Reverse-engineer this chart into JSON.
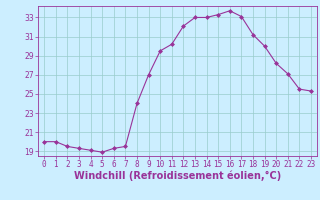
{
  "x": [
    0,
    1,
    2,
    3,
    4,
    5,
    6,
    7,
    8,
    9,
    10,
    11,
    12,
    13,
    14,
    15,
    16,
    17,
    18,
    19,
    20,
    21,
    22,
    23
  ],
  "y": [
    20.0,
    20.0,
    19.5,
    19.3,
    19.1,
    18.9,
    19.3,
    19.5,
    24.0,
    27.0,
    29.5,
    30.2,
    32.1,
    33.0,
    33.0,
    33.3,
    33.7,
    33.1,
    31.2,
    30.0,
    28.2,
    27.1,
    25.5,
    25.3
  ],
  "line_color": "#993399",
  "marker": "D",
  "marker_size": 2,
  "bg_color": "#cceeff",
  "grid_color": "#99cccc",
  "xlabel": "Windchill (Refroidissement éolien,°C)",
  "ylim": [
    18.5,
    34.2
  ],
  "xlim": [
    -0.5,
    23.5
  ],
  "yticks": [
    19,
    21,
    23,
    25,
    27,
    29,
    31,
    33
  ],
  "xticks": [
    0,
    1,
    2,
    3,
    4,
    5,
    6,
    7,
    8,
    9,
    10,
    11,
    12,
    13,
    14,
    15,
    16,
    17,
    18,
    19,
    20,
    21,
    22,
    23
  ],
  "tick_label_fontsize": 5.5,
  "xlabel_fontsize": 7.0,
  "border_color": "#993399",
  "line_width": 0.8
}
